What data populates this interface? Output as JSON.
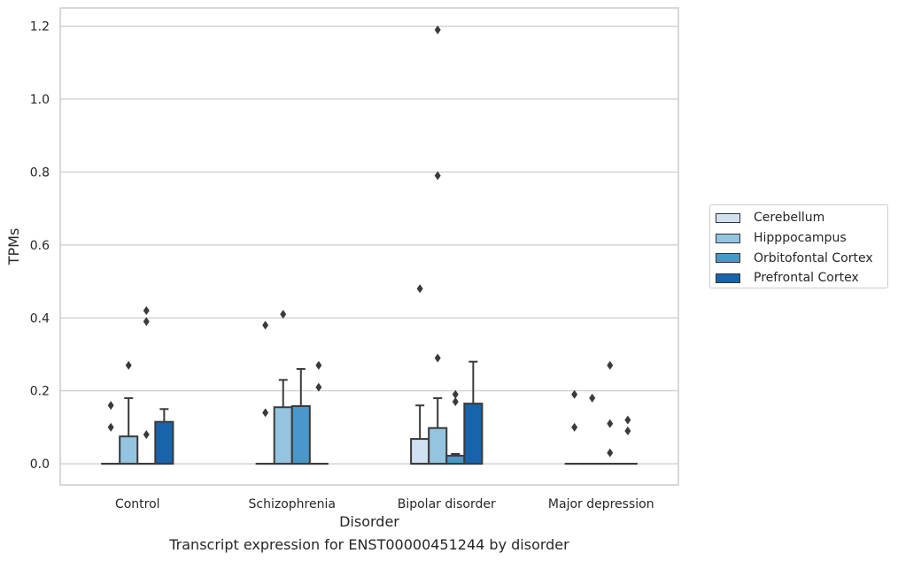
{
  "chart_data": {
    "type": "box",
    "caption": "Transcript expression for ENST00000451244 by disorder",
    "xlabel": "Disorder",
    "ylabel": "TPMs",
    "ylim": [
      -0.058,
      1.25
    ],
    "yticks": [
      0.0,
      0.2,
      0.4,
      0.6,
      0.8,
      1.0,
      1.2
    ],
    "ytick_labels": [
      "0.0",
      "0.2",
      "0.4",
      "0.6",
      "0.8",
      "1.0",
      "1.2"
    ],
    "grid": "horizontal",
    "legend_placement": "right",
    "categories": [
      "Control",
      "Schizophrenia",
      "Bipolar disorder",
      "Major depression"
    ],
    "series": [
      {
        "name": "Cerebellum",
        "color": "#d0e1f2",
        "boxes": [
          {
            "q1": 0,
            "median": 0,
            "q3": 0,
            "whisker_low": 0,
            "whisker_high": 0,
            "fliers": [
              0.16,
              0.1
            ]
          },
          {
            "q1": 0,
            "median": 0,
            "q3": 0,
            "whisker_low": 0,
            "whisker_high": 0,
            "fliers": [
              0.38,
              0.14
            ]
          },
          {
            "q1": 0,
            "median": 0,
            "q3": 0.068,
            "whisker_low": 0,
            "whisker_high": 0.16,
            "fliers": [
              0.48
            ]
          },
          {
            "q1": 0,
            "median": 0,
            "q3": 0,
            "whisker_low": 0,
            "whisker_high": 0,
            "fliers": [
              0.19,
              0.1
            ]
          }
        ]
      },
      {
        "name": "Hipppocampus",
        "color": "#94c4df",
        "boxes": [
          {
            "q1": 0,
            "median": 0,
            "q3": 0.075,
            "whisker_low": 0,
            "whisker_high": 0.18,
            "fliers": [
              0.27
            ]
          },
          {
            "q1": 0,
            "median": 0,
            "q3": 0.155,
            "whisker_low": 0,
            "whisker_high": 0.23,
            "fliers": [
              0.41
            ]
          },
          {
            "q1": 0,
            "median": 0,
            "q3": 0.098,
            "whisker_low": 0,
            "whisker_high": 0.18,
            "fliers": [
              1.19,
              0.79,
              0.29
            ]
          },
          {
            "q1": 0,
            "median": 0,
            "q3": 0,
            "whisker_low": 0,
            "whisker_high": 0,
            "fliers": [
              0.18
            ]
          }
        ]
      },
      {
        "name": "Orbitofontal Cortex",
        "color": "#4a98c9",
        "boxes": [
          {
            "q1": 0,
            "median": 0,
            "q3": 0,
            "whisker_low": 0,
            "whisker_high": 0,
            "fliers": [
              0.42,
              0.39,
              0.08
            ]
          },
          {
            "q1": 0,
            "median": 0,
            "q3": 0.158,
            "whisker_low": 0,
            "whisker_high": 0.26,
            "fliers": []
          },
          {
            "q1": 0,
            "median": 0,
            "q3": 0.022,
            "whisker_low": 0,
            "whisker_high": 0.027,
            "fliers": [
              0.19,
              0.17
            ]
          },
          {
            "q1": 0,
            "median": 0,
            "q3": 0,
            "whisker_low": 0,
            "whisker_high": 0,
            "fliers": [
              0.27,
              0.11,
              0.03
            ]
          }
        ]
      },
      {
        "name": "Prefrontal Cortex",
        "color": "#1764ab",
        "boxes": [
          {
            "q1": 0,
            "median": 0,
            "q3": 0.115,
            "whisker_low": 0,
            "whisker_high": 0.15,
            "fliers": []
          },
          {
            "q1": 0,
            "median": 0,
            "q3": 0,
            "whisker_low": 0,
            "whisker_high": 0,
            "fliers": [
              0.27,
              0.21
            ]
          },
          {
            "q1": 0,
            "median": 0,
            "q3": 0.165,
            "whisker_low": 0,
            "whisker_high": 0.28,
            "fliers": []
          },
          {
            "q1": 0,
            "median": 0,
            "q3": 0,
            "whisker_low": 0,
            "whisker_high": 0,
            "fliers": [
              0.12,
              0.09
            ]
          }
        ]
      }
    ]
  }
}
